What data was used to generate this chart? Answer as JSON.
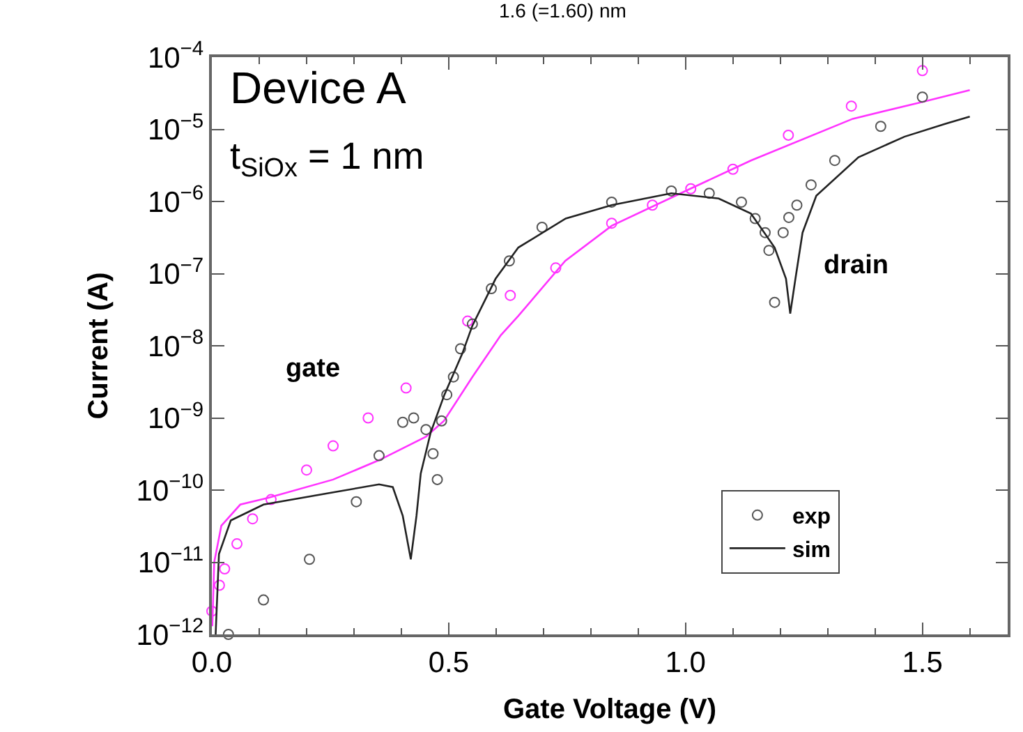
{
  "chart_data": {
    "type": "scatter",
    "title": "1.6 (=1.60) nm",
    "xlabel": "Gate Voltage (V)",
    "ylabel": "Current (A)",
    "annotations": [
      "Device A",
      "t$_{SiOx}$ = 1 nm",
      "gate",
      "drain"
    ],
    "series": [
      {
        "color": "#ff33ff",
        "marker": "circle",
        "x": [
          0.0,
          0.016,
          0.027,
          0.053,
          0.086,
          0.125,
          0.2,
          0.256,
          0.33,
          0.41,
          0.54,
          0.63,
          0.726,
          0.844,
          0.93,
          1.011,
          1.1,
          1.217,
          1.35,
          1.5
        ],
        "values": [
          2.1e-12,
          4.8e-12,
          8.1e-12,
          1.8e-11,
          4e-11,
          7.4e-11,
          1.9e-10,
          4.1e-10,
          1e-09,
          2.6e-09,
          2.2e-08,
          5e-08,
          1.2e-07,
          5e-07,
          8.9e-07,
          1.5e-06,
          2.8e-06,
          8.3e-06,
          2.1e-05,
          6.5e-05
        ]
      },
      {
        "type": "line",
        "color": "#ff33ff",
        "marker": "none",
        "line_style": "solid",
        "x": [
          0.001,
          0.005,
          0.02,
          0.06,
          0.118,
          0.256,
          0.353,
          0.452,
          0.49,
          0.55,
          0.61,
          0.647,
          0.746,
          0.844,
          1.01,
          1.138,
          1.353,
          1.5,
          1.6
        ],
        "values": [
          1.3e-12,
          1e-11,
          3.2e-11,
          6.3e-11,
          7.8e-11,
          1.4e-10,
          2.6e-10,
          5.5e-10,
          9.1e-10,
          3.7e-09,
          1.4e-08,
          2.6e-08,
          1.5e-07,
          4.6e-07,
          1.5e-06,
          3.7e-06,
          1.4e-05,
          2.4e-05,
          3.5e-05
        ]
      },
      {
        "name": "exp",
        "color": "#555555",
        "marker": "circle",
        "x": [
          0.035,
          0.109,
          0.206,
          0.305,
          0.353,
          0.403,
          0.426,
          0.452,
          0.467,
          0.476,
          0.485,
          0.496,
          0.51,
          0.525,
          0.55,
          0.59,
          0.628,
          0.697,
          0.844,
          0.97,
          1.05,
          1.118,
          1.147,
          1.168,
          1.176,
          1.188,
          1.206,
          1.218,
          1.235,
          1.265,
          1.315,
          1.412,
          1.5
        ],
        "values": [
          1e-12,
          3e-12,
          1.1e-11,
          6.9e-11,
          3e-10,
          8.7e-10,
          1e-09,
          6.9e-10,
          3.2e-10,
          1.4e-10,
          9.1e-10,
          2.1e-09,
          3.7e-09,
          9.1e-09,
          2e-08,
          6.2e-08,
          1.5e-07,
          4.4e-07,
          9.8e-07,
          1.4e-06,
          1.3e-06,
          9.8e-07,
          5.8e-07,
          3.7e-07,
          2.1e-07,
          4e-08,
          3.7e-07,
          6e-07,
          8.9e-07,
          1.7e-06,
          3.7e-06,
          1.1e-05,
          2.8e-05
        ]
      },
      {
        "type": "line",
        "name": "sim",
        "color": "#222222",
        "marker": "none",
        "line_style": "solid",
        "x": [
          0.008,
          0.015,
          0.04,
          0.109,
          0.256,
          0.353,
          0.382,
          0.403,
          0.42,
          0.432,
          0.441,
          0.462,
          0.491,
          0.529,
          0.55,
          0.599,
          0.647,
          0.747,
          0.844,
          0.97,
          1.07,
          1.138,
          1.188,
          1.212,
          1.221,
          1.232,
          1.247,
          1.276,
          1.365,
          1.462,
          1.55,
          1.6
        ],
        "values": [
          1e-12,
          1.3e-11,
          3.8e-11,
          6.3e-11,
          9.3e-11,
          1.2e-10,
          1.1e-10,
          4.4e-11,
          1.1e-11,
          4.4e-11,
          1.7e-10,
          6.3e-10,
          2.1e-09,
          7.9e-09,
          1.9e-08,
          8.5e-08,
          2.3e-07,
          5.8e-07,
          8.9e-07,
          1.3e-06,
          1.1e-06,
          6.8e-07,
          2.3e-07,
          8.5e-08,
          2.8e-08,
          8.5e-08,
          3.7e-07,
          1.2e-06,
          4.1e-06,
          7.9e-06,
          1.2e-05,
          1.5e-05
        ]
      }
    ],
    "xlim": [
      0,
      1.68
    ],
    "ylim": [
      1e-12,
      0.0001
    ],
    "log": "y",
    "xticks": [
      {
        "value": 0,
        "label": "0.0"
      },
      {
        "value": 0.1,
        "label": null
      },
      {
        "value": 0.2,
        "label": null
      },
      {
        "value": 0.3,
        "label": null
      },
      {
        "value": 0.4,
        "label": null
      },
      {
        "value": 0.5,
        "label": "0.5"
      },
      {
        "value": 0.6,
        "label": null
      },
      {
        "value": 0.7,
        "label": null
      },
      {
        "value": 0.8,
        "label": null
      },
      {
        "value": 0.9,
        "label": null
      },
      {
        "value": 1.0,
        "label": "1.0"
      },
      {
        "value": 1.1,
        "label": null
      },
      {
        "value": 1.2,
        "label": null
      },
      {
        "value": 1.3,
        "label": null
      },
      {
        "value": 1.4,
        "label": null
      },
      {
        "value": 1.5,
        "label": "1.5"
      },
      {
        "value": 1.6,
        "label": null
      }
    ],
    "yticks": [
      {
        "value": 1e-12,
        "label": "10$^{−12}$"
      },
      {
        "value": 1e-11,
        "label": "10$^{−11}$"
      },
      {
        "value": 1e-10,
        "label": "10$^{−10}$"
      },
      {
        "value": 1e-09,
        "label": "10$^{−9}$"
      },
      {
        "value": 1e-08,
        "label": "10$^{−8}$"
      },
      {
        "value": 1e-07,
        "label": "10$^{−7}$"
      },
      {
        "value": 1e-06,
        "label": "10$^{−6}$"
      },
      {
        "value": 1e-05,
        "label": "10$^{−5}$"
      },
      {
        "value": 0.0001,
        "label": "10$^{−4}$"
      }
    ],
    "legend": "bottom right"
  }
}
